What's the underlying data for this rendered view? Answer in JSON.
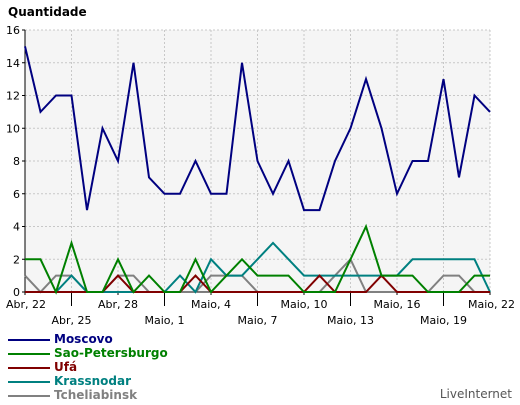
{
  "chart_data": {
    "type": "line",
    "ylabel": "Quantidade",
    "ylim": [
      0,
      16
    ],
    "yticks": [
      0,
      2,
      4,
      6,
      8,
      10,
      12,
      14,
      16
    ],
    "x_tick_labels": [
      {
        "index": 0,
        "label": "Abr, 22",
        "row": 1
      },
      {
        "index": 3,
        "label": "Abr, 25",
        "row": 2
      },
      {
        "index": 6,
        "label": "Abr, 28",
        "row": 1
      },
      {
        "index": 9,
        "label": "Maio, 1",
        "row": 2
      },
      {
        "index": 12,
        "label": "Maio, 4",
        "row": 1
      },
      {
        "index": 15,
        "label": "Maio, 7",
        "row": 2
      },
      {
        "index": 18,
        "label": "Maio, 10",
        "row": 1
      },
      {
        "index": 21,
        "label": "Maio, 13",
        "row": 2
      },
      {
        "index": 24,
        "label": "Maio, 16",
        "row": 1
      },
      {
        "index": 27,
        "label": "Maio, 19",
        "row": 2
      },
      {
        "index": 30,
        "label": "Maio, 22",
        "row": 1
      }
    ],
    "grid": true,
    "legend_placement": "bottom-left",
    "series": [
      {
        "name": "Moscovo",
        "color": "#000080",
        "values": [
          15,
          11,
          12,
          12,
          5,
          10,
          8,
          14,
          7,
          6,
          6,
          8,
          6,
          6,
          14,
          8,
          6,
          8,
          5,
          5,
          8,
          10,
          13,
          10,
          6,
          8,
          8,
          13,
          7,
          12,
          11
        ]
      },
      {
        "name": "Sao-Petersburgo",
        "color": "#008000",
        "values": [
          2,
          2,
          0,
          3,
          0,
          0,
          2,
          0,
          1,
          0,
          0,
          2,
          0,
          1,
          2,
          1,
          1,
          1,
          0,
          0,
          0,
          2,
          4,
          1,
          1,
          1,
          0,
          0,
          0,
          1,
          1
        ]
      },
      {
        "name": "Ufá",
        "color": "#800000",
        "values": [
          0,
          0,
          0,
          0,
          0,
          0,
          1,
          0,
          0,
          0,
          0,
          1,
          0,
          0,
          0,
          0,
          0,
          0,
          0,
          1,
          0,
          0,
          0,
          1,
          0,
          0,
          0,
          0,
          0,
          0,
          0
        ]
      },
      {
        "name": "Krassnodar",
        "color": "#008080",
        "values": [
          0,
          0,
          0,
          1,
          0,
          0,
          0,
          0,
          0,
          0,
          1,
          0,
          2,
          1,
          1,
          2,
          3,
          2,
          1,
          1,
          1,
          1,
          1,
          1,
          1,
          2,
          2,
          2,
          2,
          2,
          0
        ]
      },
      {
        "name": "Tcheliabinsk",
        "color": "#808080",
        "values": [
          1,
          0,
          1,
          1,
          0,
          0,
          1,
          1,
          0,
          0,
          0,
          0,
          1,
          1,
          1,
          0,
          0,
          0,
          0,
          0,
          1,
          2,
          0,
          0,
          0,
          0,
          0,
          1,
          1,
          0,
          0
        ]
      }
    ]
  },
  "branding": "LiveInternet"
}
